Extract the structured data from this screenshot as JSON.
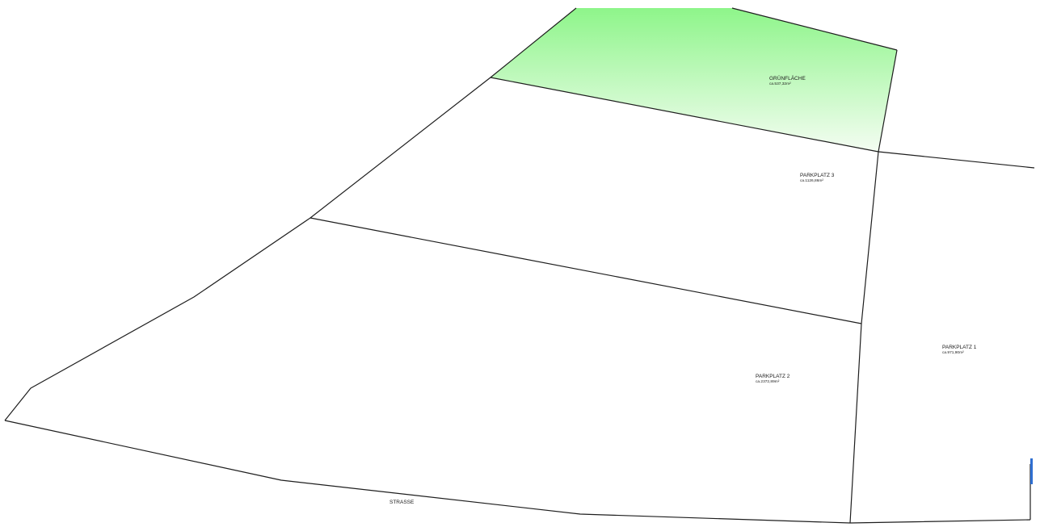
{
  "colors": {
    "green_area_top": "#8ef58a",
    "green_area_bottom": "#f4fdf2",
    "lines": "#1e1e1e",
    "edge_marker": "#2f6fd1"
  },
  "areas": {
    "gruenflaeche": {
      "name": "GRÜNFLÄCHE",
      "size": "ca.537,32m²"
    },
    "parkplatz3": {
      "name": "PARKPLATZ 3",
      "size": "ca.1126,86m²"
    },
    "parkplatz2": {
      "name": "PARKPLATZ 2",
      "size": "ca.2372,89m²"
    },
    "parkplatz1": {
      "name": "PARKPLATZ 1",
      "size": "ca.971,90m²"
    }
  },
  "street": {
    "name": "STRASSE"
  }
}
